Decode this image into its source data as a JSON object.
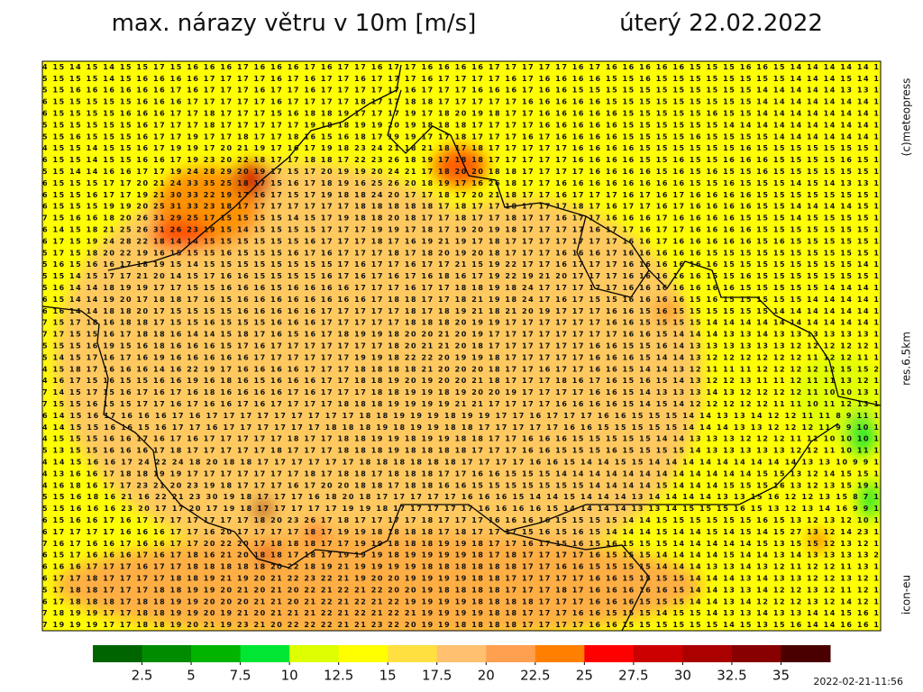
{
  "header": {
    "title": "max. nárazy větru v 10m [m/s]",
    "date": "úterý 22.02.2022"
  },
  "side": {
    "copyright": "(c)meteopress",
    "resolution": "res.6.5km",
    "model": "icon-eu"
  },
  "footer": {
    "timestamp": "2022-02-21-11:56"
  },
  "colorbar": {
    "colors": [
      "#006400",
      "#008c00",
      "#00b400",
      "#00e632",
      "#ddff00",
      "#ffff00",
      "#ffe040",
      "#ffc070",
      "#ffa050",
      "#ff8000",
      "#ff0000",
      "#cc0000",
      "#aa0000",
      "#880000",
      "#4a0000"
    ],
    "ticks": [
      2.5,
      5,
      7.5,
      10,
      12.5,
      15,
      17.5,
      20,
      22.5,
      25,
      27.5,
      30,
      32.5,
      35
    ]
  },
  "map": {
    "rows": [
      "4 15 14 15 14 15 15 17 15 16 16 16 17 16 16 16 17 16 17 17 16 17 17 16 16 16 16 17 17 17 17 17 16 17 16 16 16 16 16 15 15 15 16 16 15 14 14 14 14 14 1",
      "5 15 15 15 14 15 16 16 16 16 17 17 17 17 16 17 16 17 17 16 17 17 17 16 17 17 17 17 16 17 16 16 16 16 15 15 16 15 15 15 15 15 15 15 15 14 14 14 15 14 1",
      "5 15 16 16 16 16 16 16 17 16 17 17 17 16 17 17 16 17 17 17 17 17 16 17 17 17 16 16 16 17 16 16 15 15 15 15 15 15 15 15 15 15 15 14 14 14 14 14 13 13 1",
      "6 15 15 15 15 15 16 16 16 17 17 17 17 17 16 17 17 17 17 18 17 17 18 18 17 17 17 17 17 16 16 16 16 16 15 15 15 15 15 15 15 15 15 14 14 14 14 14 14 14 1",
      "6 15 15 15 15 16 16 16 17 17 18 17 17 17 15 16 18 18 19 17 17 17 19 17 18 20 19 18 17 17 16 16 16 16 16 15 15 15 15 15 16 15 15 14 14 14 14 14 14 14 1",
      "5 15 15 15 15 15 16 17 17 17 18 17 17 17 17 17 19 18 18 19 19 20 19 18 18 18 17 17 17 17 16 16 16 16 16 15 15 15 15 15 15 14 14 14 14 14 14 14 14 14 1",
      "5 15 16 15 15 15 16 17 17 19 17 17 18 17 17 18 16 15 16 18 17 19 19 17 17 18 17 17 17 16 17 16 16 16 16 15 15 15 15 16 15 15 15 15 14 14 14 14 14 14 1",
      "4 15 15 14 15 15 16 17 19 19 17 20 21 19 17 16 17 19 18 23 24 21 18 21 18 17 18 17 17 17 17 17 16 16 16 16 15 15 15 15 15 15 16 15 15 15 15 15 15 15 1",
      "6 15 15 14 15 15 16 16 17 19 23 20 22 18 17 17 18 18 17 22 23 26 18 19 17 18 18 17 17 17 17 17 16 16 16 16 15 15 16 15 15 16 16 16 15 15 15 15 16 15 1",
      "5 15 14 14 16 16 17 17 19 24 28 29 20 19 17 15 17 20 19 19 20 24 21 17 18 20 20 18 18 17 17 17 17 16 16 16 16 15 16 15 16 15 15 16 15 15 15 15 15 15 1",
      "6 15 15 15 17 17 20 21 24 33 35 25 18 17 15 16 17 18 19 16 25 26 20 18 19 17 16 26 18 17 17 16 16 16 16 16 16 16 16 15 15 16 15 15 15 14 15 14 13 13 1",
      "6 15 15 16 17 17 19 21 30 33 22 19 17 16 17 15 17 19 18 18 24 20 17 17 18 17 20 21 18 17 17 16 17 17 17 16 17 16 17 16 16 16 16 15 15 15 15 15 15 15 1",
      "6 15 15 15 19 19 20 25 31 33 23 18 17 17 17 17 17 17 17 18 18 18 18 18 17 18 17 17 18 17 17 17 18 17 16 17 17 16 17 16 16 16 16 15 15 14 14 14 14 15 1",
      "7 15 16 16 18 20 26 31 29 25 17 15 15 15 15 14 15 17 19 18 18 20 18 17 17 18 17 17 18 17 17 16 17 17 16 16 16 17 16 16 16 16 15 15 15 14 15 15 15 15 1",
      "6 14 15 18 21 25 26 31 26 23 19 15 14 15 15 15 15 17 17 17 19 19 17 18 17 19 20 19 18 17 17 17 17 16 17 17 16 17 17 16 16 16 16 15 15 15 15 15 15 15 1",
      "6 17 15 19 24 28 22 18 14 14 15 15 15 15 15 15 16 17 17 17 18 17 16 19 21 19 17 18 17 17 17 17 17 17 17 16 16 17 16 16 16 16 16 15 16 15 15 15 15 15 1",
      "5 17 15 18 20 22 19 16 15 15 15 16 15 15 15 16 17 16 17 17 17 18 17 18 20 19 20 18 17 17 17 16 16 16 17 16 16 16 16 16 15 15 15 15 15 15 15 15 15 15 1",
      "5 16 15 16 16 17 18 19 15 14 15 15 15 15 15 15 15 15 17 16 17 17 16 17 17 21 15 19 22 17 17 16 17 17 17 16 16 16 16 16 16 15 15 15 15 15 15 15 15 14 1",
      "5 15 14 15 17 17 21 20 14 15 17 16 16 15 15 15 15 16 17 16 17 16 17 16 18 16 17 19 22 19 21 20 17 17 17 16 16 16 16 16 15 15 16 15 15 15 15 15 15 15 1",
      "5 16 14 14 18 19 19 17 17 15 15 16 16 16 15 16 16 16 16 17 17 17 16 17 17 18 18 19 18 24 17 17 17 17 17 16 16 16 16 16 16 16 15 15 15 15 15 14 14 14 1",
      "6 15 14 14 19 20 17 18 18 17 16 15 16 16 16 16 16 16 16 16 17 18 18 17 17 18 21 19 18 24 17 16 17 15 15 16 16 16 16 15 16 15 15 15 15 15 14 14 14 14 1",
      "6 16 14 14 18 18 20 17 15 15 15 15 16 16 16 16 16 17 17 17 17 17 18 17 18 19 21 18 21 20 19 17 17 17 16 16 15 16 15 15 15 15 15 15 14 14 14 14 14 14 1",
      "7 15 17 18 16 18 18 17 15 15 16 15 15 15 16 16 16 17 17 17 17 17 18 18 18 20 19 19 17 17 17 17 17 17 16 16 15 15 15 15 14 14 14 14 14 14 14 14 14 14 1",
      "7 17 15 15 16 17 18 18 16 14 14 15 18 17 16 15 16 17 18 19 19 18 20 20 21 20 19 17 17 17 17 17 17 17 17 16 16 15 14 14 14 13 13 14 13 13 13 13 13 13 1",
      "5 15 15 16 19 15 16 18 16 16 16 15 17 16 17 17 17 17 17 17 17 18 20 21 21 20 18 17 17 17 17 17 17 16 16 15 15 16 14 13 13 13 13 13 13 12 12 12 12 12 1",
      "5 14 15 17 16 17 16 19 16 16 16 16 16 17 17 17 17 17 17 19 19 18 22 22 20 19 19 18 17 17 17 17 17 16 16 16 15 14 14 13 12 12 12 12 12 12 11 12 12 11 1",
      "4 15 18 17 16 16 16 14 16 22 19 17 16 16 16 16 17 17 17 18 18 18 18 21 20 20 20 18 17 17 16 17 17 16 16 15 14 14 13 12 11 11 11 12 12 12 12 12 15 15 2",
      "4 16 17 15 16 15 15 16 16 19 16 18 16 15 16 16 16 17 17 18 18 19 20 19 20 20 21 18 17 17 17 18 16 17 16 15 16 15 14 13 12 12 13 11 11 12 11 11 13 12 1",
      "7 14 15 17 15 16 17 16 17 16 18 16 16 16 16 17 16 17 17 17 18 18 19 19 18 19 20 20 19 17 17 17 17 16 16 15 14 13 13 13 14 13 12 12 12 12 11 10 10 13 1",
      "7 15 15 16 15 15 17 17 16 17 16 16 17 16 17 17 17 17 18 18 18 19 19 19 19 21 21 17 17 17 17 16 16 16 16 15 14 15 14 12 12 12 12 12 11 11 10 11 12 13 1",
      "6 14 15 16 17 16 16 16 17 16 17 17 17 17 17 17 17 17 17 18 18 19 19 19 18 19 19 17 17 16 17 17 17 16 16 15 15 15 14 14 13 13 14 12 12 11 11 8 9 11 1",
      "4 14 15 15 16 16 15 16 17 17 16 17 17 17 17 17 17 18 18 18 19 18 19 19 18 18 17 17 17 17 17 16 16 15 15 15 15 15 14 14 14 13 13 12 12 12 11 9 9 10 1",
      "4 15 15 15 16 16 17 16 17 16 17 17 17 17 17 18 17 17 18 18 19 19 18 19 19 18 18 17 17 16 16 16 15 15 15 15 15 14 14 13 13 13 12 12 12 11 11 10 10 10 1",
      "5 13 15 15 16 16 16 17 18 17 17 17 17 17 18 17 17 17 18 18 18 19 18 18 18 18 17 17 17 16 16 15 15 15 16 15 15 15 15 14 13 13 13 13 13 12 12 11 10 11 1",
      "4 14 15 16 16 17 24 22 24 18 20 18 18 17 17 17 17 17 17 18 18 18 18 18 18 17 17 17 17 16 16 15 14 14 15 15 14 14 14 14 14 14 14 14 14 13 13 10 9 9 1",
      "4 13 16 16 17 18 18 19 19 17 17 17 17 17 17 17 18 17 18 18 17 18 18 18 17 17 16 16 15 15 15 14 14 14 14 14 14 14 14 14 14 14 14 15 15 13 12 14 15 15 1",
      "4 16 18 16 17 17 23 21 20 23 19 18 17 17 17 16 17 20 20 18 18 17 18 18 16 16 15 15 15 15 15 15 15 14 14 14 14 15 14 14 14 15 15 15 16 13 12 13 15 19 1",
      "5 15 16 18 16 21 16 22 21 23 30 19 18 17 17 17 16 18 20 18 17 17 17 17 17 16 16 16 15 14 14 15 14 14 14 13 14 14 14 14 13 13 15 16 12 12 13 15 8 7 1",
      "5 15 16 16 16 23 20 17 17 20 17 19 18 17 17 17 17 17 19 19 18 17 17 17 17 17 16 16 16 16 15 14 14 14 14 13 13 14 15 15 15 16 15 13 12 13 14 16 9 9 1",
      "6 15 16 16 17 16 17 17 17 17 17 17 17 18 20 23 26 17 18 17 17 17 17 18 17 17 17 16 16 16 16 15 15 15 15 14 14 15 15 15 15 15 15 16 15 13 12 13 12 10 1",
      "6 17 17 17 17 16 16 16 17 17 16 20 17 17 17 17 18 17 19 19 18 18 18 18 17 18 17 17 17 15 16 15 16 15 14 14 14 15 14 14 15 14 15 14 15 27 13 12 14 23 1",
      "7 16 17 16 16 17 16 16 17 17 20 22 20 17 18 18 18 17 17 19 19 18 18 18 19 19 18 17 17 16 17 15 16 15 16 15 15 15 14 14 14 14 14 15 13 15 15 12 13 12 1",
      "6 15 17 16 16 16 17 16 17 18 16 21 20 18 18 17 18 17 19 19 19 18 19 19 19 19 18 17 18 17 17 17 17 16 15 15 15 14 14 14 14 15 14 14 13 14 13 13 13 13 2",
      "6 16 16 17 17 17 16 17 17 18 18 18 18 18 20 22 18 19 21 19 19 19 19 18 18 18 18 18 18 17 17 16 16 15 15 15 15 14 14 14 13 13 14 13 12 11 12 12 11 13 1",
      "6 17 17 18 17 17 17 17 18 18 19 21 19 20 21 22 23 22 21 19 20 20 19 19 19 19 18 18 17 17 17 17 17 16 16 15 15 15 15 14 14 14 13 14 13 13 12 12 13 12 1",
      "5 17 18 18 17 17 17 18 18 19 19 20 21 20 21 20 22 21 22 21 22 20 20 19 18 18 18 18 17 17 17 18 17 16 16 16 16 16 15 14 14 13 13 14 12 12 13 12 11 12 1",
      "6 17 18 18 18 17 18 18 19 19 20 20 20 21 21 20 21 22 21 22 21 22 19 19 19 19 18 18 18 18 17 17 17 16 16 16 15 15 15 14 14 13 14 12 12 12 13 12 14 12 1",
      "7 18 19 19 17 17 18 18 19 19 20 19 21 20 21 21 21 22 21 22 21 22 21 19 19 19 19 18 18 17 17 17 16 16 15 15 15 14 15 15 14 13 13 14 13 13 14 14 15 16 1",
      "7 19 19 19 17 17 18 18 19 20 21 19 23 21 20 22 22 22 21 21 23 22 20 19 19 18 18 18 18 17 17 17 17 16 16 15 15 15 15 15 15 14 15 13 15 16 14 14 16 16 1"
    ]
  }
}
